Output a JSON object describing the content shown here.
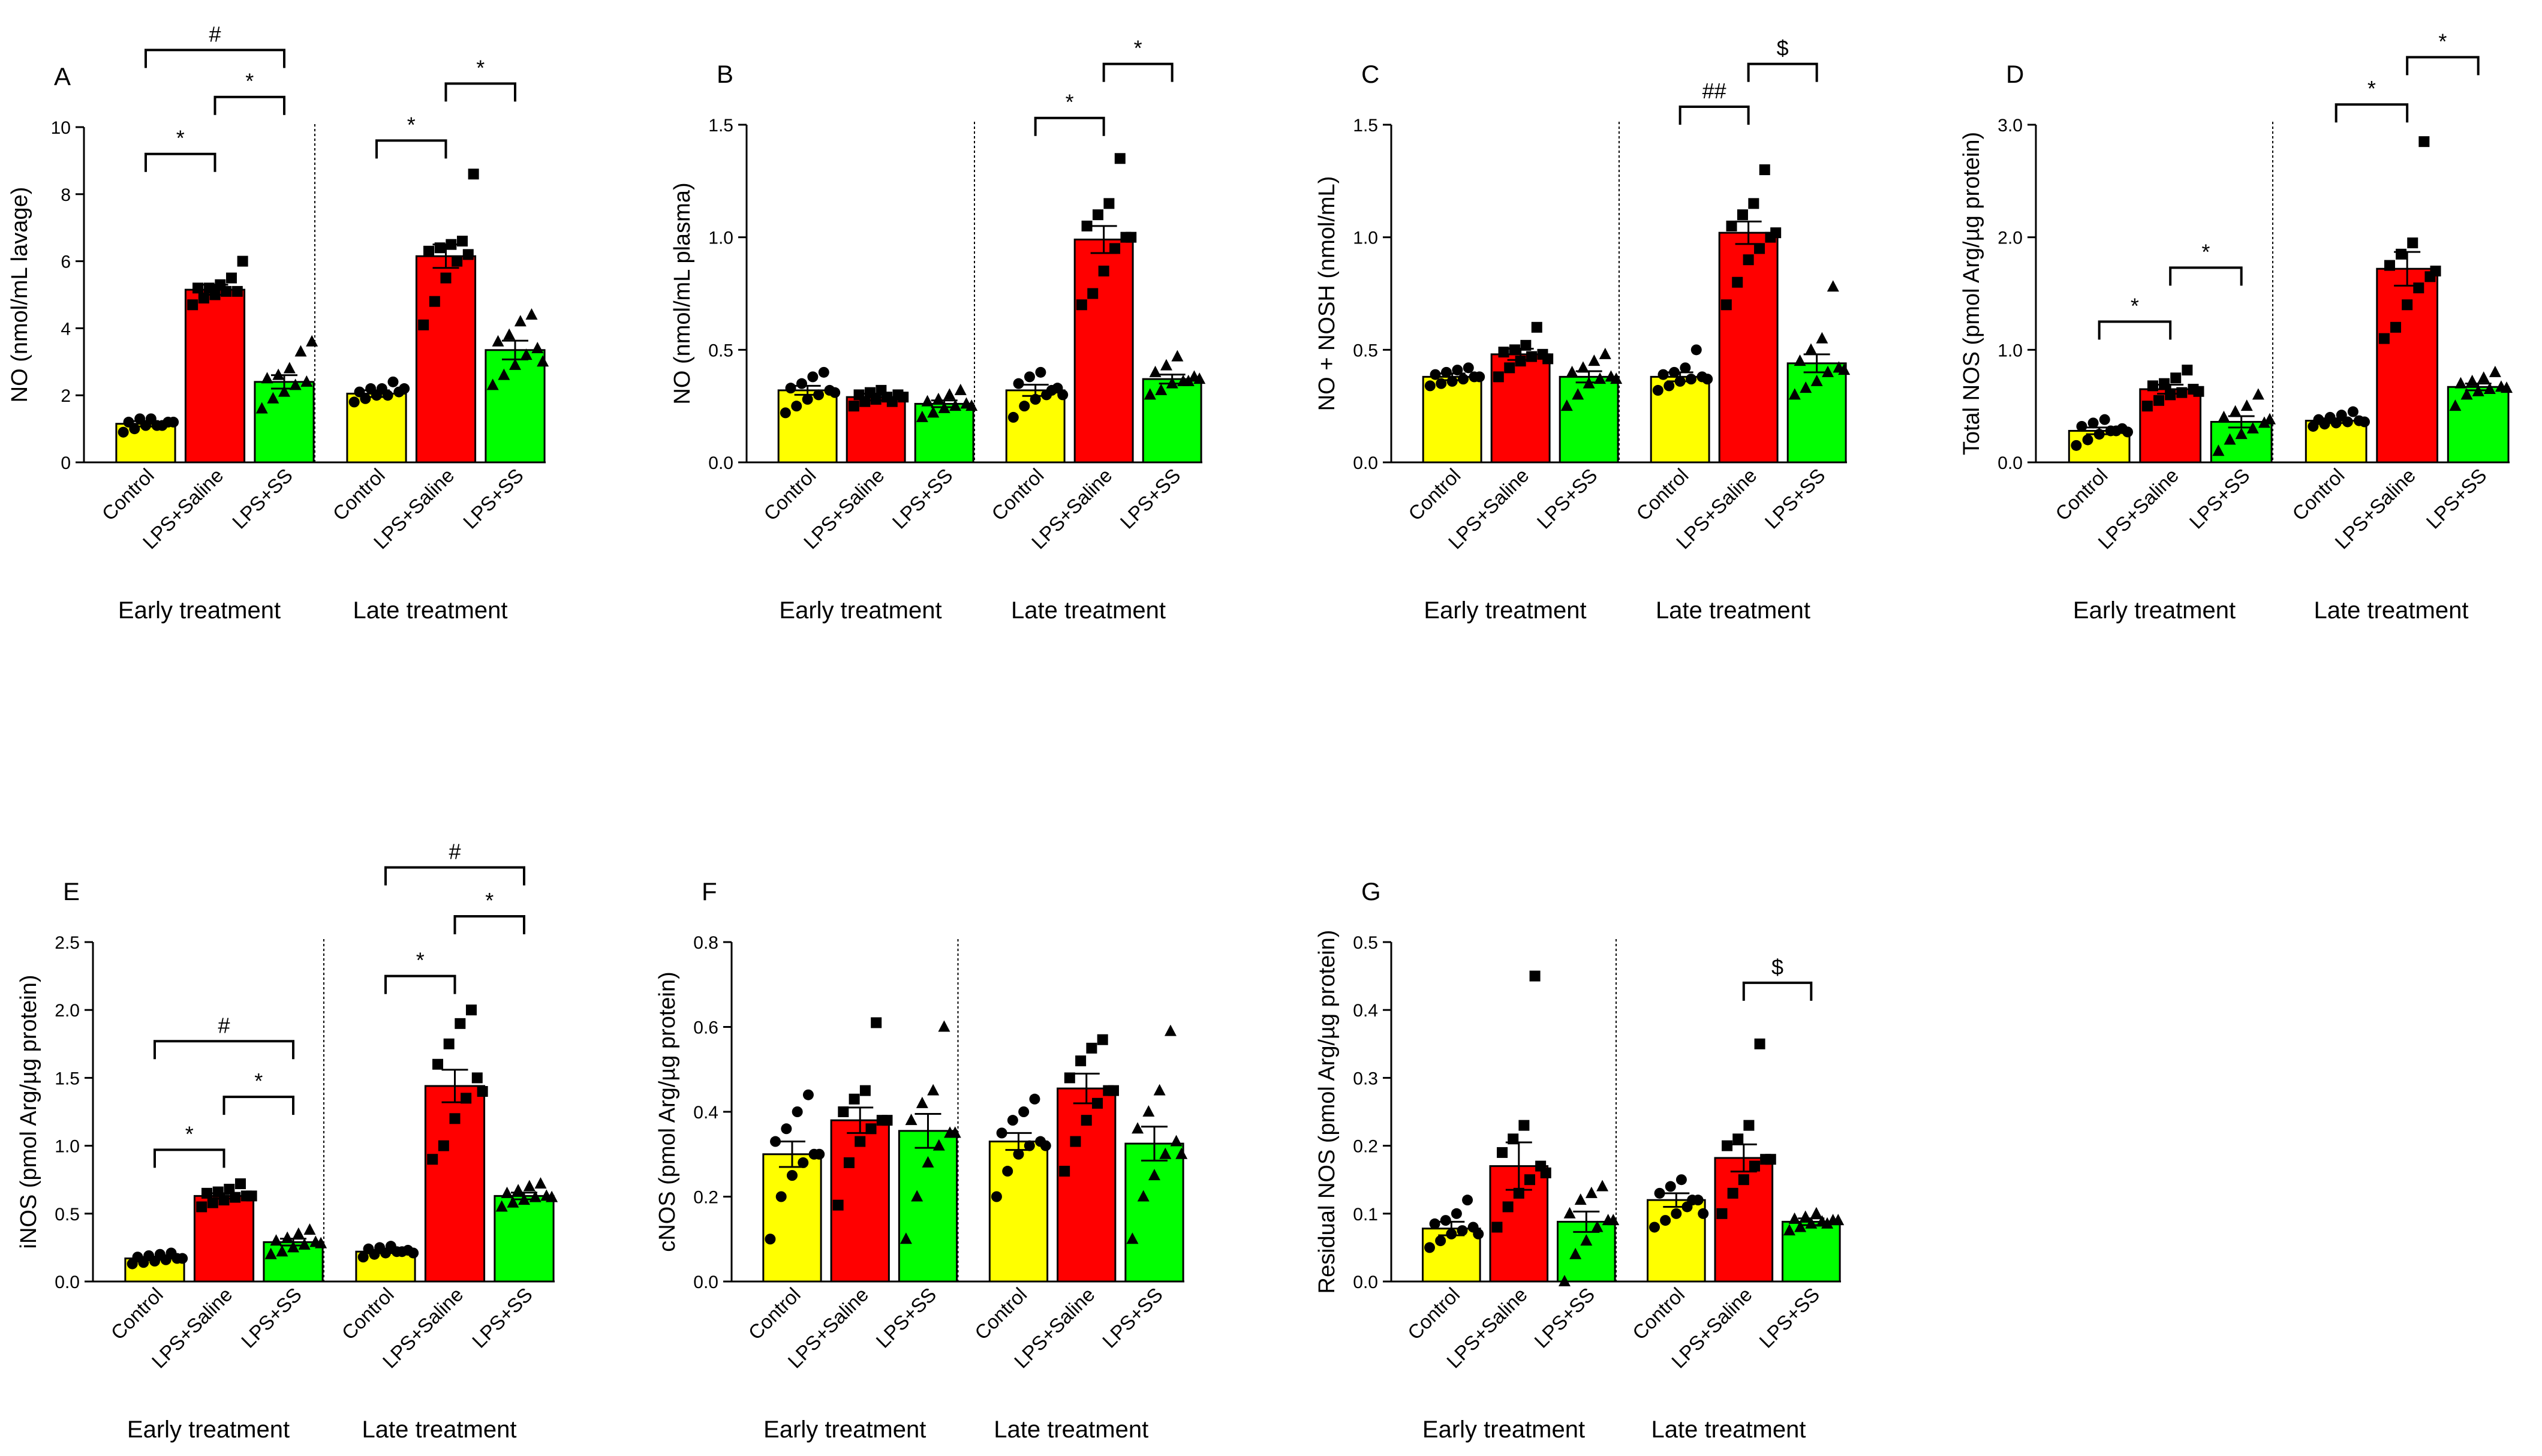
{
  "colors": {
    "Control": "#ffff00",
    "LPS+Saline": "#ff0000",
    "LPS+SS": "#00ff00"
  },
  "markers": {
    "Control": "circle",
    "LPS+Saline": "square",
    "LPS+SS": "triangle"
  },
  "chart_data": [
    {
      "type": "bar",
      "panel": "A",
      "ylabel": "NO (nmol/mL lavage)",
      "ylim": [
        0,
        10
      ],
      "yticks": [
        "0",
        "2",
        "4",
        "6",
        "8",
        "10"
      ],
      "groups": [
        "Early treatment",
        "Late treatment"
      ],
      "categories": [
        "Control",
        "LPS+Saline",
        "LPS+SS"
      ],
      "series": [
        {
          "group": "Early treatment",
          "means": [
            1.15,
            5.15,
            2.4
          ],
          "sem": [
            0.08,
            0.15,
            0.2
          ],
          "points": [
            [
              0.9,
              1.0,
              1.1,
              1.1,
              1.2,
              1.2,
              1.3,
              1.3,
              1.1,
              1.2
            ],
            [
              4.7,
              4.9,
              5.0,
              5.1,
              5.1,
              5.2,
              5.2,
              5.3,
              5.5,
              6.0
            ],
            [
              1.6,
              1.9,
              2.1,
              2.3,
              2.4,
              2.5,
              2.6,
              2.8,
              3.3,
              3.6
            ]
          ]
        },
        {
          "group": "Late treatment",
          "means": [
            2.05,
            6.15,
            3.35
          ],
          "sem": [
            0.1,
            0.35,
            0.28
          ],
          "points": [
            [
              1.8,
              1.9,
              2.0,
              2.0,
              2.1,
              2.1,
              2.2,
              2.2,
              2.4,
              2.2
            ],
            [
              4.1,
              4.8,
              5.5,
              6.0,
              6.2,
              6.3,
              6.4,
              6.5,
              6.6,
              8.6
            ],
            [
              2.3,
              2.6,
              2.9,
              3.2,
              3.4,
              3.6,
              3.8,
              4.2,
              4.4,
              3.0
            ]
          ]
        }
      ],
      "annotations": [
        {
          "group": 0,
          "from": 0,
          "to": 1,
          "level": 9.2,
          "label": "*"
        },
        {
          "group": 0,
          "from": 1,
          "to": 2,
          "level": 10.9,
          "label": "*"
        },
        {
          "group": 0,
          "from": 0,
          "to": 2,
          "level": 12.3,
          "label": "#"
        },
        {
          "group": 1,
          "from": 0,
          "to": 1,
          "level": 9.6,
          "label": "*"
        },
        {
          "group": 1,
          "from": 1,
          "to": 2,
          "level": 11.3,
          "label": "*"
        }
      ]
    },
    {
      "type": "bar",
      "panel": "B",
      "ylabel": "NO (nmol/mL plasma)",
      "ylim": [
        0,
        1.5
      ],
      "yticks": [
        "0.0",
        "0.5",
        "1.0",
        "1.5"
      ],
      "groups": [
        "Early treatment",
        "Late treatment"
      ],
      "categories": [
        "Control",
        "LPS+Saline",
        "LPS+SS"
      ],
      "series": [
        {
          "group": "Early treatment",
          "means": [
            0.32,
            0.29,
            0.26
          ],
          "sem": [
            0.02,
            0.015,
            0.015
          ],
          "points": [
            [
              0.22,
              0.25,
              0.28,
              0.3,
              0.32,
              0.33,
              0.35,
              0.38,
              0.4,
              0.31
            ],
            [
              0.25,
              0.27,
              0.28,
              0.29,
              0.3,
              0.3,
              0.31,
              0.32,
              0.27,
              0.29
            ],
            [
              0.2,
              0.22,
              0.24,
              0.25,
              0.26,
              0.27,
              0.28,
              0.3,
              0.32,
              0.25
            ]
          ]
        },
        {
          "group": "Late treatment",
          "means": [
            0.32,
            0.99,
            0.37
          ],
          "sem": [
            0.025,
            0.06,
            0.02
          ],
          "points": [
            [
              0.2,
              0.25,
              0.28,
              0.3,
              0.33,
              0.35,
              0.38,
              0.4,
              0.32,
              0.3
            ],
            [
              0.7,
              0.75,
              0.85,
              0.95,
              1.0,
              1.05,
              1.1,
              1.15,
              1.35,
              1.0
            ],
            [
              0.3,
              0.32,
              0.35,
              0.36,
              0.38,
              0.4,
              0.43,
              0.47,
              0.36,
              0.37
            ]
          ]
        }
      ],
      "annotations": [
        {
          "group": 1,
          "from": 0,
          "to": 1,
          "level": 1.53,
          "label": "*"
        },
        {
          "group": 1,
          "from": 1,
          "to": 2,
          "level": 1.77,
          "label": "*"
        }
      ]
    },
    {
      "type": "bar",
      "panel": "C",
      "ylabel": "NO + NOSH (nmol/mL)",
      "ylim": [
        0,
        1.5
      ],
      "yticks": [
        "0.0",
        "0.5",
        "1.0",
        "1.5"
      ],
      "groups": [
        "Early treatment",
        "Late treatment"
      ],
      "categories": [
        "Control",
        "LPS+Saline",
        "LPS+SS"
      ],
      "series": [
        {
          "group": "Early treatment",
          "means": [
            0.38,
            0.48,
            0.38
          ],
          "sem": [
            0.015,
            0.025,
            0.025
          ],
          "points": [
            [
              0.34,
              0.35,
              0.36,
              0.37,
              0.38,
              0.39,
              0.4,
              0.41,
              0.42,
              0.38
            ],
            [
              0.38,
              0.42,
              0.45,
              0.47,
              0.48,
              0.49,
              0.5,
              0.52,
              0.6,
              0.46
            ],
            [
              0.25,
              0.3,
              0.35,
              0.37,
              0.38,
              0.4,
              0.42,
              0.45,
              0.48,
              0.37
            ]
          ]
        },
        {
          "group": "Late treatment",
          "means": [
            0.38,
            1.02,
            0.44
          ],
          "sem": [
            0.02,
            0.05,
            0.04
          ],
          "points": [
            [
              0.32,
              0.34,
              0.36,
              0.37,
              0.38,
              0.39,
              0.4,
              0.42,
              0.5,
              0.37
            ],
            [
              0.7,
              0.8,
              0.9,
              0.95,
              1.0,
              1.05,
              1.1,
              1.15,
              1.3,
              1.02
            ],
            [
              0.3,
              0.33,
              0.36,
              0.4,
              0.42,
              0.45,
              0.5,
              0.55,
              0.78,
              0.41
            ]
          ]
        }
      ],
      "annotations": [
        {
          "group": 1,
          "from": 0,
          "to": 1,
          "level": 1.58,
          "label": "##"
        },
        {
          "group": 1,
          "from": 1,
          "to": 2,
          "level": 1.77,
          "label": "$"
        }
      ]
    },
    {
      "type": "bar",
      "panel": "D",
      "ylabel": "Total NOS (pmol Arg/µg protein)",
      "ylim": [
        0,
        3.0
      ],
      "yticks": [
        "0.0",
        "1.0",
        "2.0",
        "3.0"
      ],
      "groups": [
        "Early treatment",
        "Late treatment"
      ],
      "categories": [
        "Control",
        "LPS+Saline",
        "LPS+SS"
      ],
      "series": [
        {
          "group": "Early treatment",
          "means": [
            0.28,
            0.65,
            0.36
          ],
          "sem": [
            0.03,
            0.04,
            0.05
          ],
          "points": [
            [
              0.15,
              0.2,
              0.25,
              0.28,
              0.3,
              0.32,
              0.35,
              0.38,
              0.28,
              0.27
            ],
            [
              0.5,
              0.55,
              0.6,
              0.62,
              0.65,
              0.68,
              0.7,
              0.75,
              0.82,
              0.63
            ],
            [
              0.1,
              0.2,
              0.25,
              0.3,
              0.35,
              0.4,
              0.45,
              0.5,
              0.6,
              0.38
            ]
          ]
        },
        {
          "group": "Late treatment",
          "means": [
            0.37,
            1.72,
            0.67
          ],
          "sem": [
            0.02,
            0.15,
            0.03
          ],
          "points": [
            [
              0.32,
              0.34,
              0.35,
              0.36,
              0.37,
              0.38,
              0.4,
              0.42,
              0.45,
              0.36
            ],
            [
              1.1,
              1.2,
              1.4,
              1.55,
              1.65,
              1.75,
              1.85,
              1.95,
              2.85,
              1.7
            ],
            [
              0.5,
              0.6,
              0.63,
              0.65,
              0.67,
              0.7,
              0.72,
              0.75,
              0.8,
              0.66
            ]
          ]
        }
      ],
      "annotations": [
        {
          "group": 0,
          "from": 0,
          "to": 1,
          "level": 1.25,
          "label": "*"
        },
        {
          "group": 0,
          "from": 1,
          "to": 2,
          "level": 1.73,
          "label": "*"
        },
        {
          "group": 1,
          "from": 0,
          "to": 1,
          "level": 3.18,
          "label": "*"
        },
        {
          "group": 1,
          "from": 1,
          "to": 2,
          "level": 3.6,
          "label": "*"
        }
      ]
    },
    {
      "type": "bar",
      "panel": "E",
      "ylabel": "iNOS (pmol Arg/µg protein)",
      "ylim": [
        0,
        2.5
      ],
      "yticks": [
        "0.0",
        "0.5",
        "1.0",
        "1.5",
        "2.0",
        "2.5"
      ],
      "groups": [
        "Early treatment",
        "Late treatment"
      ],
      "categories": [
        "Control",
        "LPS+Saline",
        "LPS+SS"
      ],
      "series": [
        {
          "group": "Early treatment",
          "means": [
            0.17,
            0.63,
            0.29
          ],
          "sem": [
            0.01,
            0.02,
            0.025
          ],
          "points": [
            [
              0.13,
              0.14,
              0.15,
              0.16,
              0.17,
              0.18,
              0.19,
              0.2,
              0.21,
              0.17
            ],
            [
              0.55,
              0.58,
              0.6,
              0.62,
              0.63,
              0.65,
              0.66,
              0.68,
              0.72,
              0.63
            ],
            [
              0.2,
              0.22,
              0.25,
              0.27,
              0.29,
              0.3,
              0.32,
              0.35,
              0.38,
              0.28
            ]
          ]
        },
        {
          "group": "Late treatment",
          "means": [
            0.22,
            1.44,
            0.63
          ],
          "sem": [
            0.01,
            0.12,
            0.025
          ],
          "points": [
            [
              0.18,
              0.2,
              0.21,
              0.22,
              0.23,
              0.24,
              0.25,
              0.26,
              0.22,
              0.21
            ],
            [
              0.9,
              1.0,
              1.2,
              1.35,
              1.5,
              1.6,
              1.75,
              1.9,
              2.0,
              1.4
            ],
            [
              0.55,
              0.58,
              0.6,
              0.62,
              0.63,
              0.65,
              0.67,
              0.7,
              0.72,
              0.62
            ]
          ]
        }
      ],
      "annotations": [
        {
          "group": 0,
          "from": 0,
          "to": 1,
          "level": 0.97,
          "label": "*"
        },
        {
          "group": 0,
          "from": 1,
          "to": 2,
          "level": 1.36,
          "label": "*"
        },
        {
          "group": 0,
          "from": 0,
          "to": 2,
          "level": 1.77,
          "label": "#"
        },
        {
          "group": 1,
          "from": 0,
          "to": 1,
          "level": 2.25,
          "label": "*"
        },
        {
          "group": 1,
          "from": 1,
          "to": 2,
          "level": 2.69,
          "label": "*"
        },
        {
          "group": 1,
          "from": 0,
          "to": 2,
          "level": 3.05,
          "label": "#"
        }
      ]
    },
    {
      "type": "bar",
      "panel": "F",
      "ylabel": "cNOS (pmol Arg/µg protein)",
      "ylim": [
        0,
        0.8
      ],
      "yticks": [
        "0.0",
        "0.2",
        "0.4",
        "0.6",
        "0.8"
      ],
      "groups": [
        "Early treatment",
        "Late treatment"
      ],
      "categories": [
        "Control",
        "LPS+Saline",
        "LPS+SS"
      ],
      "series": [
        {
          "group": "Early treatment",
          "means": [
            0.3,
            0.38,
            0.355
          ],
          "sem": [
            0.03,
            0.03,
            0.04
          ],
          "points": [
            [
              0.1,
              0.2,
              0.25,
              0.28,
              0.3,
              0.33,
              0.36,
              0.4,
              0.44,
              0.3
            ],
            [
              0.18,
              0.28,
              0.33,
              0.36,
              0.38,
              0.4,
              0.43,
              0.45,
              0.61,
              0.38
            ],
            [
              0.1,
              0.2,
              0.28,
              0.32,
              0.35,
              0.38,
              0.42,
              0.45,
              0.6,
              0.35
            ]
          ]
        },
        {
          "group": "Late treatment",
          "means": [
            0.33,
            0.455,
            0.325
          ],
          "sem": [
            0.02,
            0.035,
            0.04
          ],
          "points": [
            [
              0.2,
              0.26,
              0.3,
              0.32,
              0.33,
              0.35,
              0.38,
              0.4,
              0.43,
              0.32
            ],
            [
              0.26,
              0.33,
              0.38,
              0.42,
              0.45,
              0.48,
              0.52,
              0.55,
              0.57,
              0.45
            ],
            [
              0.1,
              0.2,
              0.25,
              0.3,
              0.33,
              0.36,
              0.4,
              0.45,
              0.59,
              0.3
            ]
          ]
        }
      ],
      "annotations": []
    },
    {
      "type": "bar",
      "panel": "G",
      "ylabel": "Residual NOS (pmol Arg/µg protein)",
      "ylim": [
        0,
        0.5
      ],
      "yticks": [
        "0.0",
        "0.1",
        "0.2",
        "0.3",
        "0.4",
        "0.5"
      ],
      "groups": [
        "Early treatment",
        "Late treatment"
      ],
      "categories": [
        "Control",
        "LPS+Saline",
        "LPS+SS"
      ],
      "series": [
        {
          "group": "Early treatment",
          "means": [
            0.078,
            0.17,
            0.088
          ],
          "sem": [
            0.01,
            0.035,
            0.015
          ],
          "points": [
            [
              0.05,
              0.06,
              0.07,
              0.075,
              0.08,
              0.085,
              0.09,
              0.1,
              0.12,
              0.07
            ],
            [
              0.08,
              0.11,
              0.13,
              0.15,
              0.17,
              0.19,
              0.21,
              0.23,
              0.45,
              0.16
            ],
            [
              0.0,
              0.04,
              0.06,
              0.08,
              0.09,
              0.1,
              0.12,
              0.13,
              0.14,
              0.09
            ]
          ]
        },
        {
          "group": "Late treatment",
          "means": [
            0.12,
            0.182,
            0.088
          ],
          "sem": [
            0.01,
            0.02,
            0.005
          ],
          "points": [
            [
              0.08,
              0.09,
              0.1,
              0.11,
              0.12,
              0.13,
              0.14,
              0.15,
              0.12,
              0.1
            ],
            [
              0.1,
              0.13,
              0.15,
              0.17,
              0.18,
              0.2,
              0.21,
              0.23,
              0.35,
              0.18
            ],
            [
              0.075,
              0.08,
              0.085,
              0.088,
              0.09,
              0.092,
              0.095,
              0.1,
              0.085,
              0.09
            ]
          ]
        }
      ],
      "annotations": [
        {
          "group": 1,
          "from": 1,
          "to": 2,
          "level": 0.44,
          "label": "$"
        }
      ]
    }
  ]
}
